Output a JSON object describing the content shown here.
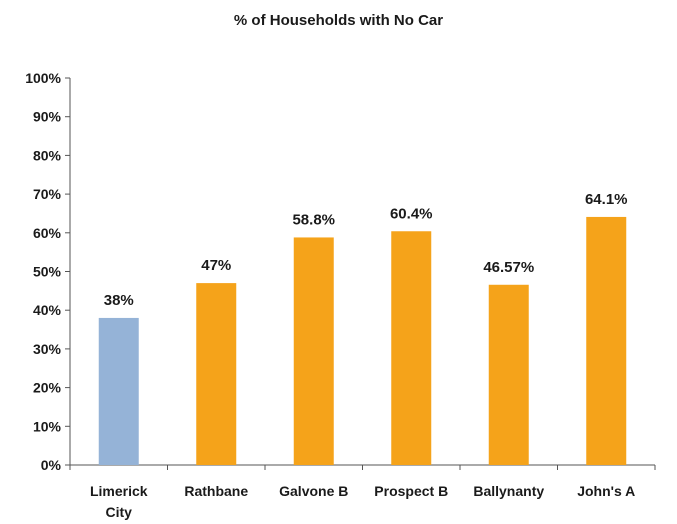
{
  "chart_data": {
    "type": "bar",
    "title": "% of Households with No Car",
    "categories": [
      "Limerick\nCity",
      "Rathbane",
      "Galvone B",
      "Prospect B",
      "Ballynanty",
      "John's A"
    ],
    "values": [
      38,
      47,
      58.8,
      60.4,
      46.57,
      64.1
    ],
    "data_labels": [
      "38%",
      "47%",
      "58.8%",
      "60.4%",
      "46.57%",
      "64.1%"
    ],
    "bar_colors": [
      "#95b3d7",
      "#f5a31a",
      "#f5a31a",
      "#f5a31a",
      "#f5a31a",
      "#f5a31a"
    ],
    "ylim": [
      0,
      100
    ],
    "yticks": [
      0,
      10,
      20,
      30,
      40,
      50,
      60,
      70,
      80,
      90,
      100
    ],
    "ytick_labels": [
      "0%",
      "10%",
      "20%",
      "30%",
      "40%",
      "50%",
      "60%",
      "70%",
      "80%",
      "90%",
      "100%"
    ],
    "xlabel": "",
    "ylabel": "",
    "grid": false,
    "legend": "none"
  }
}
